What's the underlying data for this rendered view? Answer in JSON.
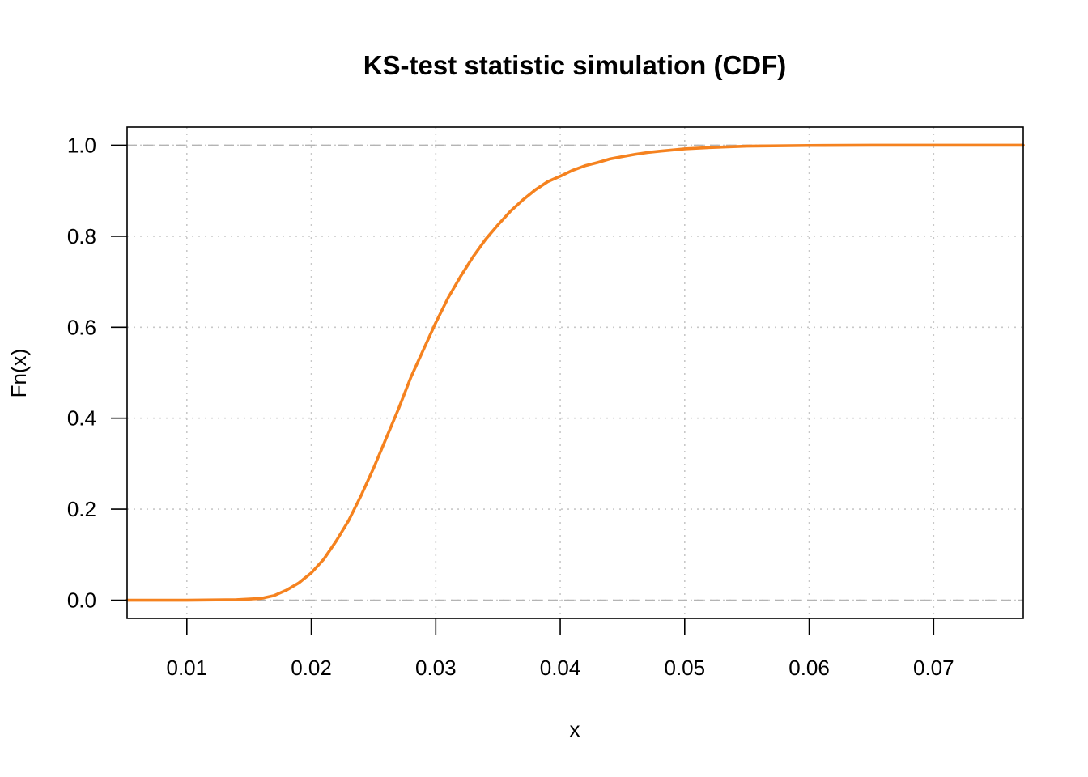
{
  "chart_data": {
    "type": "line",
    "title": "KS-test statistic simulation (CDF)",
    "xlabel": "x",
    "ylabel": "Fn(x)",
    "xlim": [
      0.0052,
      0.0772
    ],
    "ylim": [
      -0.04,
      1.04
    ],
    "x_ticks": [
      "0.01",
      "0.02",
      "0.03",
      "0.04",
      "0.05",
      "0.06",
      "0.07"
    ],
    "y_ticks": [
      "0.0",
      "0.2",
      "0.4",
      "0.6",
      "0.8",
      "1.0"
    ],
    "grid": true,
    "reference_lines": [
      0,
      1
    ],
    "colors": {
      "line": "#F5821F",
      "grid": "#C8C8C8",
      "reference": "#B4B4B4"
    },
    "series": [
      {
        "x": [
          0.0052,
          0.01,
          0.014,
          0.016,
          0.017,
          0.018,
          0.019,
          0.02,
          0.021,
          0.022,
          0.023,
          0.024,
          0.025,
          0.026,
          0.027,
          0.028,
          0.029,
          0.03,
          0.031,
          0.032,
          0.033,
          0.034,
          0.035,
          0.036,
          0.037,
          0.038,
          0.039,
          0.04,
          0.041,
          0.042,
          0.043,
          0.044,
          0.045,
          0.046,
          0.047,
          0.048,
          0.05,
          0.052,
          0.055,
          0.06,
          0.065,
          0.07,
          0.0772
        ],
        "y": [
          0.0,
          0.0,
          0.001,
          0.004,
          0.01,
          0.022,
          0.038,
          0.06,
          0.09,
          0.13,
          0.175,
          0.23,
          0.29,
          0.355,
          0.42,
          0.49,
          0.55,
          0.61,
          0.665,
          0.712,
          0.755,
          0.793,
          0.825,
          0.855,
          0.88,
          0.902,
          0.92,
          0.932,
          0.945,
          0.955,
          0.962,
          0.97,
          0.975,
          0.98,
          0.984,
          0.987,
          0.992,
          0.995,
          0.998,
          0.9995,
          1.0,
          1.0,
          1.0
        ]
      }
    ]
  }
}
